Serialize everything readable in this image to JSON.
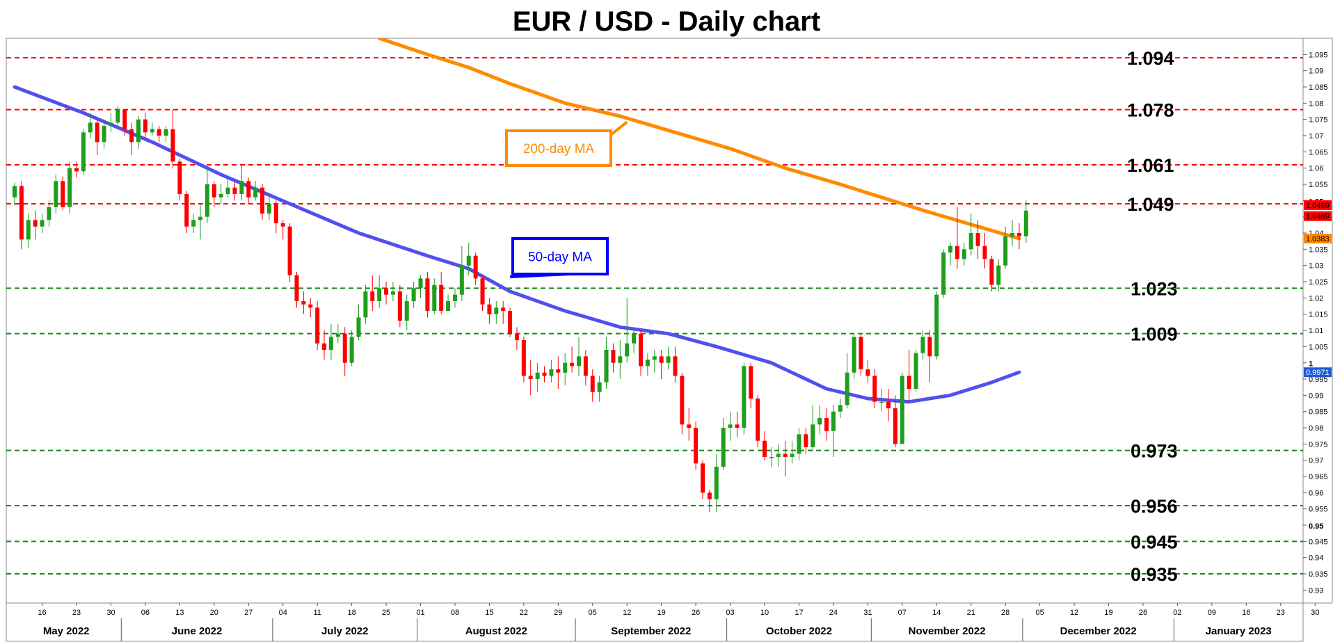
{
  "chart_data": {
    "type": "candlestick",
    "title": "EUR / USD - Daily chart",
    "y_range": [
      0.926,
      1.1
    ],
    "y_ticks": [
      "1.095",
      "1.09",
      "1.085",
      "1.08",
      "1.075",
      "1.07",
      "1.065",
      "1.06",
      "1.055",
      "1.05",
      "1.045",
      "1.04",
      "1.035",
      "1.03",
      "1.025",
      "1.02",
      "1.015",
      "1.01",
      "1.005",
      "1",
      "0.995",
      "0.99",
      "0.985",
      "0.98",
      "0.975",
      "0.97",
      "0.965",
      "0.96",
      "0.955",
      "0.95",
      "0.945",
      "0.94",
      "0.935",
      "0.93"
    ],
    "y_tick_values": [
      1.095,
      1.09,
      1.085,
      1.08,
      1.075,
      1.07,
      1.065,
      1.06,
      1.055,
      1.05,
      1.045,
      1.04,
      1.035,
      1.03,
      1.025,
      1.02,
      1.015,
      1.01,
      1.005,
      1.0,
      0.995,
      0.99,
      0.985,
      0.98,
      0.975,
      0.97,
      0.965,
      0.96,
      0.955,
      0.95,
      0.945,
      0.94,
      0.935,
      0.93
    ],
    "y_ticks_bold": [
      "1.05",
      "1",
      "0.95"
    ],
    "x_day_ticks": [
      {
        "label": "16",
        "day": 4
      },
      {
        "label": "23",
        "day": 9
      },
      {
        "label": "30",
        "day": 14
      },
      {
        "label": "06",
        "day": 19
      },
      {
        "label": "13",
        "day": 24
      },
      {
        "label": "20",
        "day": 29
      },
      {
        "label": "27",
        "day": 34
      },
      {
        "label": "04",
        "day": 39
      },
      {
        "label": "11",
        "day": 44
      },
      {
        "label": "18",
        "day": 49
      },
      {
        "label": "25",
        "day": 54
      },
      {
        "label": "01",
        "day": 59
      },
      {
        "label": "08",
        "day": 64
      },
      {
        "label": "15",
        "day": 69
      },
      {
        "label": "22",
        "day": 74
      },
      {
        "label": "29",
        "day": 79
      },
      {
        "label": "05",
        "day": 84
      },
      {
        "label": "12",
        "day": 89
      },
      {
        "label": "19",
        "day": 94
      },
      {
        "label": "26",
        "day": 99
      },
      {
        "label": "03",
        "day": 104
      },
      {
        "label": "10",
        "day": 109
      },
      {
        "label": "17",
        "day": 114
      },
      {
        "label": "24",
        "day": 119
      },
      {
        "label": "31",
        "day": 124
      },
      {
        "label": "07",
        "day": 129
      },
      {
        "label": "14",
        "day": 134
      },
      {
        "label": "21",
        "day": 139
      },
      {
        "label": "28",
        "day": 144
      },
      {
        "label": "05",
        "day": 149
      },
      {
        "label": "12",
        "day": 154
      },
      {
        "label": "19",
        "day": 159
      },
      {
        "label": "26",
        "day": 164
      },
      {
        "label": "02",
        "day": 169
      },
      {
        "label": "09",
        "day": 174
      },
      {
        "label": "16",
        "day": 179
      },
      {
        "label": "23",
        "day": 184
      },
      {
        "label": "30",
        "day": 189
      }
    ],
    "months": [
      {
        "label": "May 2022",
        "start": 0,
        "end": 16
      },
      {
        "label": "June 2022",
        "start": 16,
        "end": 38
      },
      {
        "label": "July 2022",
        "start": 38,
        "end": 59
      },
      {
        "label": "August 2022",
        "start": 59,
        "end": 82
      },
      {
        "label": "September 2022",
        "start": 82,
        "end": 104
      },
      {
        "label": "October 2022",
        "start": 104,
        "end": 125
      },
      {
        "label": "November 2022",
        "start": 125,
        "end": 147
      },
      {
        "label": "December 2022",
        "start": 147,
        "end": 169
      },
      {
        "label": "January 2023",
        "start": 169,
        "end": 191
      }
    ],
    "candles": [
      [
        1.051,
        1.0545,
        1.0555,
        1.0485
      ],
      [
        1.0545,
        1.038,
        1.056,
        1.035
      ],
      [
        1.038,
        1.044,
        1.046,
        1.0355
      ],
      [
        1.044,
        1.042,
        1.047,
        1.038
      ],
      [
        1.042,
        1.044,
        1.046,
        1.04
      ],
      [
        1.044,
        1.048,
        1.05,
        1.042
      ],
      [
        1.048,
        1.056,
        1.058,
        1.046
      ],
      [
        1.056,
        1.048,
        1.0575,
        1.047
      ],
      [
        1.048,
        1.06,
        1.062,
        1.046
      ],
      [
        1.06,
        1.059,
        1.062,
        1.057
      ],
      [
        1.059,
        1.071,
        1.072,
        1.058
      ],
      [
        1.071,
        1.074,
        1.077,
        1.069
      ],
      [
        1.074,
        1.068,
        1.075,
        1.064
      ],
      [
        1.068,
        1.073,
        1.075,
        1.066
      ],
      [
        1.073,
        1.074,
        1.077,
        1.071
      ],
      [
        1.074,
        1.078,
        1.079,
        1.072
      ],
      [
        1.078,
        1.072,
        1.078,
        1.07
      ],
      [
        1.072,
        1.068,
        1.074,
        1.064
      ],
      [
        1.068,
        1.075,
        1.076,
        1.066
      ],
      [
        1.075,
        1.071,
        1.077,
        1.069
      ],
      [
        1.071,
        1.072,
        1.074,
        1.07
      ],
      [
        1.072,
        1.07,
        1.073,
        1.068
      ],
      [
        1.07,
        1.072,
        1.073,
        1.068
      ],
      [
        1.072,
        1.062,
        1.078,
        1.06
      ],
      [
        1.062,
        1.052,
        1.063,
        1.05
      ],
      [
        1.052,
        1.042,
        1.053,
        1.04
      ],
      [
        1.042,
        1.044,
        1.046,
        1.04
      ],
      [
        1.044,
        1.045,
        1.049,
        1.038
      ],
      [
        1.045,
        1.055,
        1.06,
        1.043
      ],
      [
        1.055,
        1.051,
        1.056,
        1.048
      ],
      [
        1.051,
        1.052,
        1.055,
        1.049
      ],
      [
        1.052,
        1.054,
        1.057,
        1.051
      ],
      [
        1.054,
        1.052,
        1.056,
        1.05
      ],
      [
        1.052,
        1.056,
        1.061,
        1.05
      ],
      [
        1.056,
        1.051,
        1.057,
        1.049
      ],
      [
        1.051,
        1.054,
        1.056,
        1.05
      ],
      [
        1.054,
        1.046,
        1.055,
        1.044
      ],
      [
        1.046,
        1.049,
        1.051,
        1.044
      ],
      [
        1.049,
        1.043,
        1.05,
        1.04
      ],
      [
        1.043,
        1.042,
        1.044,
        1.038
      ],
      [
        1.042,
        1.027,
        1.043,
        1.025
      ],
      [
        1.027,
        1.019,
        1.028,
        1.017
      ],
      [
        1.019,
        1.018,
        1.022,
        1.015
      ],
      [
        1.018,
        1.017,
        1.02,
        1.014
      ],
      [
        1.017,
        1.006,
        1.019,
        1.004
      ],
      [
        1.006,
        1.004,
        1.01,
        1.001
      ],
      [
        1.004,
        1.008,
        1.012,
        1.001
      ],
      [
        1.008,
        1.009,
        1.012,
        1.006
      ],
      [
        1.009,
        1.0,
        1.011,
        0.996
      ],
      [
        1.0,
        1.008,
        1.01,
        0.999
      ],
      [
        1.008,
        1.014,
        1.018,
        1.007
      ],
      [
        1.014,
        1.022,
        1.024,
        1.012
      ],
      [
        1.022,
        1.019,
        1.027,
        1.016
      ],
      [
        1.019,
        1.023,
        1.027,
        1.017
      ],
      [
        1.023,
        1.021,
        1.025,
        1.018
      ],
      [
        1.021,
        1.022,
        1.025,
        1.019
      ],
      [
        1.022,
        1.013,
        1.024,
        1.011
      ],
      [
        1.013,
        1.019,
        1.021,
        1.01
      ],
      [
        1.019,
        1.023,
        1.025,
        1.017
      ],
      [
        1.023,
        1.026,
        1.027,
        1.02
      ],
      [
        1.026,
        1.016,
        1.028,
        1.014
      ],
      [
        1.016,
        1.024,
        1.026,
        1.015
      ],
      [
        1.024,
        1.016,
        1.028,
        1.015
      ],
      [
        1.016,
        1.019,
        1.021,
        1.017
      ],
      [
        1.019,
        1.021,
        1.023,
        1.017
      ],
      [
        1.021,
        1.03,
        1.036,
        1.019
      ],
      [
        1.03,
        1.033,
        1.037,
        1.027
      ],
      [
        1.033,
        1.026,
        1.034,
        1.024
      ],
      [
        1.026,
        1.018,
        1.027,
        1.016
      ],
      [
        1.018,
        1.015,
        1.02,
        1.012
      ],
      [
        1.015,
        1.017,
        1.019,
        1.012
      ],
      [
        1.017,
        1.016,
        1.019,
        1.012
      ],
      [
        1.016,
        1.009,
        1.017,
        1.008
      ],
      [
        1.009,
        1.007,
        1.011,
        1.004
      ],
      [
        1.007,
        0.996,
        1.008,
        0.994
      ],
      [
        0.996,
        0.995,
        1.001,
        0.99
      ],
      [
        0.995,
        0.997,
        1.0,
        0.991
      ],
      [
        0.997,
        0.996,
        0.999,
        0.994
      ],
      [
        0.996,
        0.998,
        1.001,
        0.994
      ],
      [
        0.998,
        0.997,
        1.002,
        0.992
      ],
      [
        0.997,
        1.0,
        1.003,
        0.993
      ],
      [
        1.0,
        0.999,
        1.005,
        0.997
      ],
      [
        0.999,
        1.002,
        1.008,
        0.996
      ],
      [
        1.002,
        0.996,
        1.004,
        0.993
      ],
      [
        0.996,
        0.991,
        0.998,
        0.988
      ],
      [
        0.991,
        0.994,
        0.996,
        0.988
      ],
      [
        0.994,
        1.004,
        1.008,
        0.992
      ],
      [
        1.004,
        1.0,
        1.006,
        0.997
      ],
      [
        1.0,
        1.002,
        1.007,
        0.995
      ],
      [
        1.002,
        1.006,
        1.02,
        1.0
      ],
      [
        1.006,
        1.009,
        1.011,
        1.003
      ],
      [
        1.009,
        0.999,
        1.01,
        0.996
      ],
      [
        0.999,
        1.001,
        1.003,
        0.996
      ],
      [
        1.001,
        1.002,
        1.004,
        0.997
      ],
      [
        1.002,
        1.0,
        1.004,
        0.995
      ],
      [
        1.0,
        1.002,
        1.005,
        0.998
      ],
      [
        1.002,
        0.996,
        1.005,
        0.994
      ],
      [
        0.996,
        0.981,
        0.997,
        0.978
      ],
      [
        0.981,
        0.98,
        0.986,
        0.976
      ],
      [
        0.98,
        0.969,
        0.982,
        0.967
      ],
      [
        0.969,
        0.96,
        0.97,
        0.958
      ],
      [
        0.96,
        0.958,
        0.961,
        0.954
      ],
      [
        0.958,
        0.968,
        0.972,
        0.954
      ],
      [
        0.968,
        0.98,
        0.983,
        0.967
      ],
      [
        0.98,
        0.981,
        0.985,
        0.976
      ],
      [
        0.981,
        0.98,
        0.985,
        0.977
      ],
      [
        0.98,
        0.999,
        1.0,
        0.978
      ],
      [
        0.999,
        0.989,
        1.0,
        0.986
      ],
      [
        0.989,
        0.976,
        0.99,
        0.974
      ],
      [
        0.976,
        0.971,
        0.979,
        0.97
      ],
      [
        0.971,
        0.971,
        0.974,
        0.968
      ],
      [
        0.971,
        0.972,
        0.975,
        0.968
      ],
      [
        0.972,
        0.971,
        0.976,
        0.965
      ],
      [
        0.971,
        0.972,
        0.976,
        0.969
      ],
      [
        0.972,
        0.978,
        0.98,
        0.97
      ],
      [
        0.978,
        0.974,
        0.98,
        0.972
      ],
      [
        0.974,
        0.981,
        0.987,
        0.973
      ],
      [
        0.981,
        0.983,
        0.987,
        0.978
      ],
      [
        0.983,
        0.979,
        0.986,
        0.976
      ],
      [
        0.979,
        0.985,
        0.987,
        0.971
      ],
      [
        0.985,
        0.987,
        0.989,
        0.983
      ],
      [
        0.987,
        0.997,
        1.003,
        0.986
      ],
      [
        0.997,
        1.008,
        1.009,
        0.995
      ],
      [
        1.008,
        0.998,
        1.009,
        0.996
      ],
      [
        0.998,
        0.996,
        1.001,
        0.994
      ],
      [
        0.996,
        0.988,
        0.998,
        0.986
      ],
      [
        0.988,
        0.988,
        0.992,
        0.985
      ],
      [
        0.988,
        0.986,
        0.992,
        0.982
      ],
      [
        0.986,
        0.975,
        0.99,
        0.974
      ],
      [
        0.975,
        0.996,
        0.997,
        0.975
      ],
      [
        0.996,
        0.992,
        1.004,
        0.988
      ],
      [
        0.992,
        1.003,
        1.004,
        0.991
      ],
      [
        1.003,
        1.008,
        1.01,
        1.001
      ],
      [
        1.008,
        1.002,
        1.01,
        0.994
      ],
      [
        1.002,
        1.021,
        1.022,
        1.001
      ],
      [
        1.021,
        1.034,
        1.035,
        1.02
      ],
      [
        1.034,
        1.036,
        1.037,
        1.03
      ],
      [
        1.036,
        1.032,
        1.048,
        1.029
      ],
      [
        1.032,
        1.035,
        1.037,
        1.03
      ],
      [
        1.035,
        1.04,
        1.046,
        1.033
      ],
      [
        1.04,
        1.036,
        1.044,
        1.032
      ],
      [
        1.036,
        1.032,
        1.04,
        1.029
      ],
      [
        1.032,
        1.024,
        1.033,
        1.022
      ],
      [
        1.024,
        1.03,
        1.032,
        1.022
      ],
      [
        1.03,
        1.039,
        1.042,
        1.029
      ],
      [
        1.039,
        1.04,
        1.044,
        1.036
      ],
      [
        1.04,
        1.039,
        1.043,
        1.035
      ],
      [
        1.039,
        1.0469,
        1.05,
        1.037
      ]
    ],
    "ma50": [
      [
        0,
        1.085
      ],
      [
        10,
        1.077
      ],
      [
        20,
        1.068
      ],
      [
        30,
        1.058
      ],
      [
        40,
        1.049
      ],
      [
        50,
        1.04
      ],
      [
        60,
        1.033
      ],
      [
        66,
        1.029
      ],
      [
        72,
        1.022
      ],
      [
        80,
        1.016
      ],
      [
        88,
        1.011
      ],
      [
        95,
        1.009
      ],
      [
        102,
        1.005
      ],
      [
        110,
        1.0
      ],
      [
        118,
        0.992
      ],
      [
        124,
        0.989
      ],
      [
        130,
        0.988
      ],
      [
        136,
        0.99
      ],
      [
        142,
        0.994
      ],
      [
        146,
        0.9971
      ]
    ],
    "ma200": [
      [
        53,
        1.1
      ],
      [
        60,
        1.095
      ],
      [
        66,
        1.091
      ],
      [
        72,
        1.086
      ],
      [
        80,
        1.08
      ],
      [
        88,
        1.076
      ],
      [
        96,
        1.071
      ],
      [
        104,
        1.066
      ],
      [
        112,
        1.06
      ],
      [
        120,
        1.055
      ],
      [
        126,
        1.051
      ],
      [
        132,
        1.047
      ],
      [
        140,
        1.042
      ],
      [
        146,
        1.0383
      ]
    ],
    "resistance_levels": [
      {
        "value": 1.094,
        "label": "1.094"
      },
      {
        "value": 1.078,
        "label": "1.078"
      },
      {
        "value": 1.061,
        "label": "1.061"
      },
      {
        "value": 1.049,
        "label": "1.049"
      }
    ],
    "support_levels": [
      {
        "value": 1.023,
        "label": "1.023"
      },
      {
        "value": 1.009,
        "label": "1.009"
      },
      {
        "value": 0.973,
        "label": "0.973"
      },
      {
        "value": 0.956,
        "label": "0.956"
      },
      {
        "value": 0.945,
        "label": "0.945"
      },
      {
        "value": 0.935,
        "label": "0.935"
      }
    ],
    "ma_labels": [
      {
        "label": "200-day MA",
        "color": "#ff8a00",
        "anchor_day": 89,
        "anchor_price": 1.0755
      },
      {
        "label": "50-day MA",
        "color": "#0000ff",
        "anchor_day": 72,
        "anchor_price": 1.0265
      }
    ],
    "price_tags": [
      {
        "label": "1.0469",
        "value": 1.0486,
        "bg": "#ff0000",
        "fg": "#000000"
      },
      {
        "label": "1.0469",
        "value": 1.0452,
        "bg": "#ff0000",
        "fg": "#000000"
      },
      {
        "label": "1.0383",
        "value": 1.0383,
        "bg": "#ff8a00",
        "fg": "#000000"
      },
      {
        "label": "0.9971",
        "value": 0.9971,
        "bg": "#1f5bd6",
        "fg": "#ffffff"
      }
    ],
    "colors": {
      "up": "#1e9e1e",
      "down": "#ff0000",
      "ma50": "#5050ee",
      "ma200": "#ff8a00",
      "resistance": "#ff0000",
      "support": "#138a13"
    }
  }
}
